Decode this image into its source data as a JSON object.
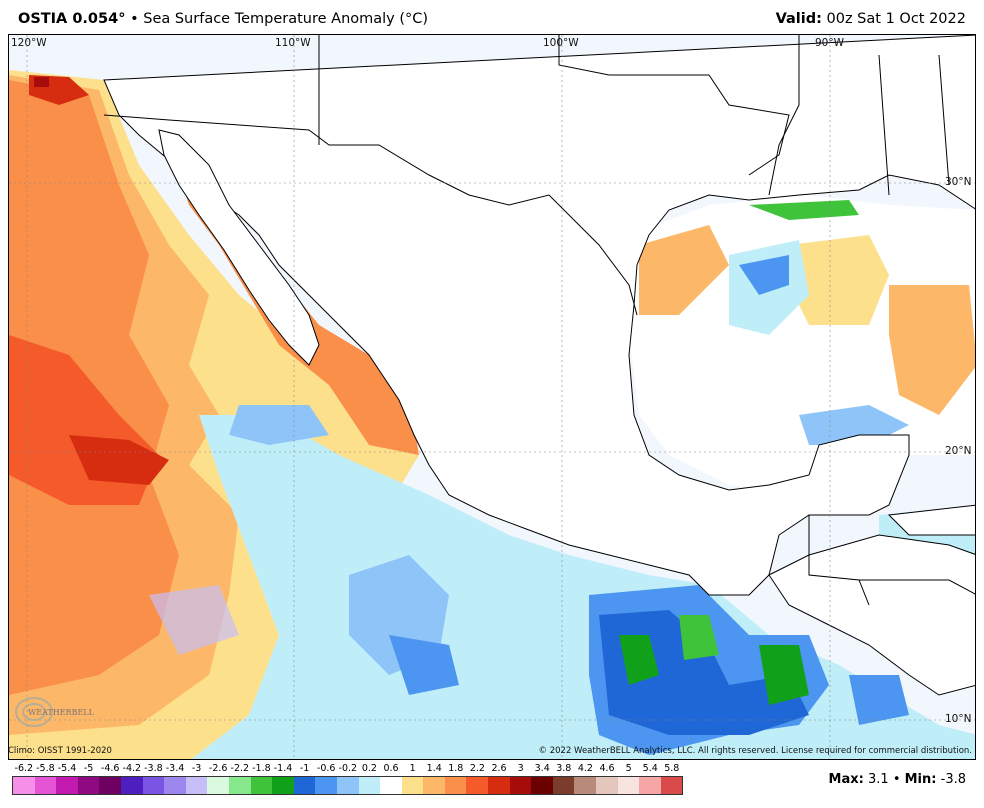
{
  "header": {
    "model": "OSTIA 0.054",
    "degree_symbol": "°",
    "bullet": "•",
    "product": "Sea Surface Temperature Anomaly (°C)",
    "valid_label": "Valid:",
    "valid_time": "00z Sat 1 Oct 2022"
  },
  "map": {
    "longitude_labels": [
      "120°W",
      "110°W",
      "100°W",
      "90°W"
    ],
    "latitude_labels": [
      "30°N",
      "20°N",
      "10°N"
    ]
  },
  "footer": {
    "climo": "Climo: OISST 1991-2020",
    "copyright": "© 2022 WeatherBELL Analytics, LLC. All rights reserved. License required for commercial distribution.",
    "logo_text": "WEATHERBELL",
    "max_label": "Max:",
    "max_value": "3.1",
    "min_label": "Min:",
    "min_value": "-3.8",
    "separator": "•"
  },
  "colorbar": {
    "labels": [
      "-6.2",
      "-5.8",
      "-5.4",
      "-5",
      "-4.6",
      "-4.2",
      "-3.8",
      "-3.4",
      "-3",
      "-2.6",
      "-2.2",
      "-1.8",
      "-1.4",
      "-1",
      "-0.6",
      "-0.2",
      "0.2",
      "0.6",
      "1",
      "1.4",
      "1.8",
      "2.2",
      "2.6",
      "3",
      "3.4",
      "3.8",
      "4.2",
      "4.6",
      "5",
      "5.4",
      "5.8"
    ],
    "colors": [
      "#f58fe8",
      "#e455d6",
      "#c21aae",
      "#8f0a80",
      "#6e0061",
      "#4d1fbf",
      "#7a55e3",
      "#9e86ef",
      "#c7bdf7",
      "#dafae0",
      "#86e88a",
      "#3fc33a",
      "#11a01a",
      "#1f66d6",
      "#4c95f0",
      "#8fc4f8",
      "#bfeef9",
      "#ffffff",
      "#fde08c",
      "#fcb868",
      "#fa8f4a",
      "#f45a2a",
      "#d62c0f",
      "#a60c0a",
      "#6b0000",
      "#7a3d2c",
      "#b88a7c",
      "#e5c6bc",
      "#f7e3df",
      "#f7a6a6",
      "#d94a4a"
    ]
  }
}
